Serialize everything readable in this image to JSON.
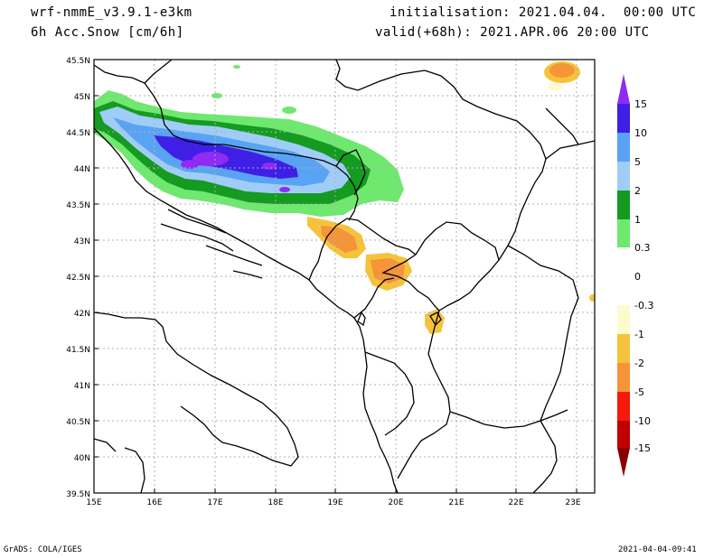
{
  "header": {
    "model": "wrf-nmmE_v3.9.1-e3km",
    "field": "6h Acc.Snow [cm/6h]",
    "init": "initialisation: 2021.04.04.  00:00 UTC",
    "valid": "valid(+68h): 2021.APR.06 20:00 UTC"
  },
  "map": {
    "lat_labels": [
      "45.5N",
      "45N",
      "44.5N",
      "44N",
      "43.5N",
      "43N",
      "42.5N",
      "42N",
      "41.5N",
      "41N",
      "40.5N",
      "40N",
      "39.5N"
    ],
    "lon_labels": [
      "15E",
      "16E",
      "17E",
      "18E",
      "19E",
      "20E",
      "21E",
      "22E",
      "23E"
    ],
    "lat_range": [
      39.5,
      45.5
    ],
    "lon_range": [
      15,
      23.3
    ],
    "grid": true
  },
  "colorbar": {
    "labels": [
      "15",
      "10",
      "5",
      "2",
      "1",
      "0.3",
      "0",
      "-0.3",
      "-1",
      "-2",
      "-5",
      "-10",
      "-15"
    ],
    "colors": [
      "#3f1fe6",
      "#59a3f5",
      "#9fcdf7",
      "#159a22",
      "#6fe86f",
      "#ffffff",
      "#ffffff",
      "#fffacc",
      "#f5c33b",
      "#f59438",
      "#f51a0a",
      "#c00000",
      "#a00000"
    ],
    "top_arrow_color": "#8f2bf2",
    "bottom_arrow_color": "#8a0000"
  },
  "footer": {
    "left": "GrADS: COLA/IGES",
    "right": "2021-04-04-09:41"
  }
}
